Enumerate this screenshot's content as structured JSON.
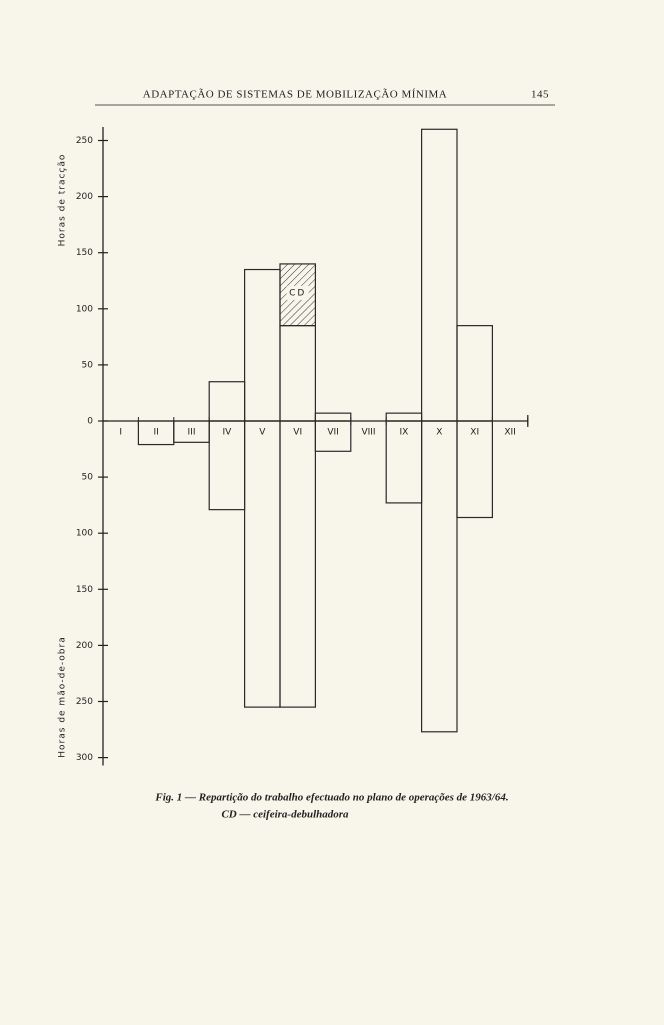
{
  "page_header": {
    "title": "ADAPTAÇÃO DE SISTEMAS DE MOBILIZAÇÃO MÍNIMA",
    "page_number": "145"
  },
  "chart_data": {
    "type": "bar",
    "categories": [
      "I",
      "II",
      "III",
      "IV",
      "V",
      "VI",
      "VII",
      "VIII",
      "IX",
      "X",
      "XI",
      "XII"
    ],
    "series": [
      {
        "name": "Horas de tracção",
        "color": "#2a2a2a",
        "values": [
          0,
          0,
          0,
          35,
          135,
          85,
          7,
          0,
          7,
          260,
          85,
          0
        ]
      },
      {
        "name": "CD",
        "color": "#2a2a2a",
        "hatch": true,
        "stacked_on": 0,
        "values": [
          0,
          0,
          0,
          0,
          0,
          55,
          0,
          0,
          0,
          0,
          0,
          0
        ]
      },
      {
        "name": "Horas de mão-de-obra",
        "color": "#2a2a2a",
        "axis": "y2",
        "values": [
          0,
          21,
          19,
          79,
          255,
          255,
          27,
          0,
          73,
          277,
          86,
          0
        ]
      }
    ],
    "ylim": [
      0,
      262
    ],
    "yticks": [
      0,
      50,
      100,
      150,
      200,
      250
    ],
    "y2lim": [
      0,
      307
    ],
    "y2ticks": [
      50,
      100,
      150,
      200,
      250,
      300
    ],
    "y2_inverted": true,
    "grid": false,
    "caption": [
      "Fig. 1 — Repartição do trabalho efectuado no plano de operações de 1963/64.",
      "CD — ceifeira-debulhadora"
    ]
  }
}
